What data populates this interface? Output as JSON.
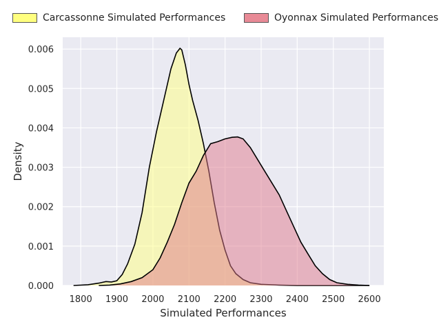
{
  "chart_data": {
    "type": "area",
    "title": "",
    "xlabel": "Simulated Performances",
    "ylabel": "Density",
    "xlim": [
      1750,
      2640
    ],
    "ylim": [
      0,
      0.0063
    ],
    "x_ticks": [
      "1800",
      "1900",
      "2000",
      "2100",
      "2200",
      "2300",
      "2400",
      "2500",
      "2600"
    ],
    "y_ticks": [
      "0.000",
      "0.001",
      "0.002",
      "0.003",
      "0.004",
      "0.005",
      "0.006"
    ],
    "grid": true,
    "legend_position": "top",
    "series": [
      {
        "name": "Carcassonne Simulated Performances",
        "color": "#ffff7f",
        "x": [
          1780,
          1820,
          1850,
          1870,
          1885,
          1900,
          1915,
          1930,
          1950,
          1970,
          1990,
          2010,
          2030,
          2050,
          2065,
          2075,
          2080,
          2090,
          2100,
          2110,
          2125,
          2140,
          2155,
          2170,
          2185,
          2200,
          2215,
          2230,
          2250,
          2270,
          2300,
          2350,
          2400,
          2500,
          2600
        ],
        "values": [
          0.0,
          2e-05,
          6e-05,
          0.0001,
          9e-05,
          0.00012,
          0.00028,
          0.00055,
          0.00105,
          0.00185,
          0.003,
          0.0039,
          0.0047,
          0.0055,
          0.0059,
          0.00602,
          0.00598,
          0.0056,
          0.0051,
          0.0047,
          0.0042,
          0.0036,
          0.0029,
          0.0021,
          0.0014,
          0.0009,
          0.0005,
          0.0003,
          0.00015,
          7e-05,
          3e-05,
          1e-05,
          0.0,
          0.0,
          0.0
        ]
      },
      {
        "name": "Oyonnax Simulated Performances",
        "color": "#e07a8c",
        "x": [
          1850,
          1880,
          1910,
          1940,
          1970,
          2000,
          2020,
          2040,
          2060,
          2080,
          2100,
          2120,
          2140,
          2160,
          2180,
          2200,
          2220,
          2235,
          2250,
          2270,
          2290,
          2310,
          2330,
          2350,
          2370,
          2390,
          2410,
          2430,
          2450,
          2470,
          2490,
          2510,
          2540,
          2570,
          2600
        ],
        "values": [
          0.0,
          1e-05,
          4e-05,
          0.0001,
          0.0002,
          0.0004,
          0.0007,
          0.0011,
          0.00155,
          0.0021,
          0.0026,
          0.0029,
          0.0033,
          0.0036,
          0.00365,
          0.00372,
          0.00376,
          0.00377,
          0.00372,
          0.0035,
          0.0032,
          0.0029,
          0.0026,
          0.0023,
          0.0019,
          0.0015,
          0.0011,
          0.0008,
          0.0005,
          0.0003,
          0.00015,
          7e-05,
          3e-05,
          1e-05,
          0.0
        ]
      }
    ]
  }
}
